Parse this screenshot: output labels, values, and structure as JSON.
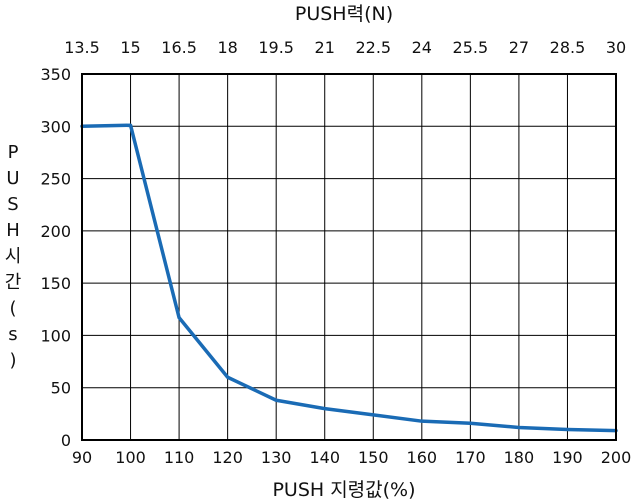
{
  "chart_data": {
    "type": "line",
    "x_top_label": "PUSH력(N)",
    "x_top_ticks": [
      "13.5",
      "15",
      "16.5",
      "18",
      "19.5",
      "21",
      "22.5",
      "24",
      "25.5",
      "27",
      "28.5",
      "30"
    ],
    "x_label": "PUSH 지령값(%)",
    "x_ticks": [
      "90",
      "100",
      "110",
      "120",
      "130",
      "140",
      "150",
      "160",
      "170",
      "180",
      "190",
      "200"
    ],
    "y_label_chars": [
      "P",
      "U",
      "S",
      "H",
      "시",
      "간",
      "(",
      "s",
      ")"
    ],
    "y_ticks": [
      "0",
      "50",
      "100",
      "150",
      "200",
      "250",
      "300",
      "350"
    ],
    "xlim": [
      90,
      200
    ],
    "ylim": [
      0,
      350
    ],
    "grid": true,
    "line_color": "#1a6bb5",
    "series": [
      {
        "x": [
          90,
          100,
          110,
          120,
          130,
          140,
          150,
          160,
          170,
          180,
          190,
          200
        ],
        "y": [
          300,
          301,
          117,
          60,
          38,
          30,
          24,
          18,
          16,
          12,
          10,
          9
        ]
      }
    ]
  }
}
